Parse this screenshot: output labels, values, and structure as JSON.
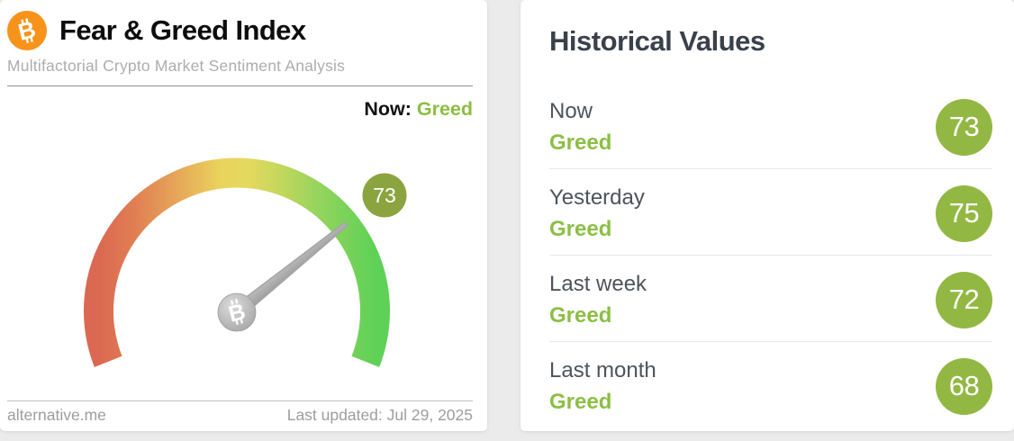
{
  "colors": {
    "accent_green_text": "#8cbf3f",
    "history_circle_green": "#92b843",
    "gauge_badge_green": "#8ca440",
    "bitcoin_orange": "#f7931a",
    "page_background": "#ebebeb",
    "gauge_gradient": [
      "#db6852",
      "#e6a558",
      "#ead35d",
      "#c3d75d",
      "#5ed156"
    ]
  },
  "icons": {
    "header_logo": "bitcoin-icon",
    "gauge_hub": "bitcoin-icon",
    "btc_glyph": "B"
  },
  "left_card": {
    "title": "Fear & Greed Index",
    "subtitle": "Multifactorial Crypto Market Sentiment Analysis",
    "now_label": "Now:",
    "now_value": "Greed",
    "footer": {
      "source": "alternative.me",
      "last_updated": "Last updated: Jul 29, 2025"
    }
  },
  "right_card": {
    "title": "Historical Values",
    "rows": [
      {
        "label": "Now",
        "classification": "Greed",
        "value": 73
      },
      {
        "label": "Yesterday",
        "classification": "Greed",
        "value": 75
      },
      {
        "label": "Last week",
        "classification": "Greed",
        "value": 72
      },
      {
        "label": "Last month",
        "classification": "Greed",
        "value": 68
      }
    ]
  },
  "chart_data": {
    "type": "gauge",
    "title": "Fear & Greed Index",
    "value": 73,
    "min": 0,
    "max": 100,
    "classification": "Greed",
    "scale": "0 = Extreme Fear (red, left) to 100 = Extreme Greed (green, right), sweep about 222 degrees",
    "historical": [
      {
        "label": "Now",
        "classification": "Greed",
        "value": 73
      },
      {
        "label": "Yesterday",
        "classification": "Greed",
        "value": 75
      },
      {
        "label": "Last week",
        "classification": "Greed",
        "value": 72
      },
      {
        "label": "Last month",
        "classification": "Greed",
        "value": 68
      }
    ]
  }
}
